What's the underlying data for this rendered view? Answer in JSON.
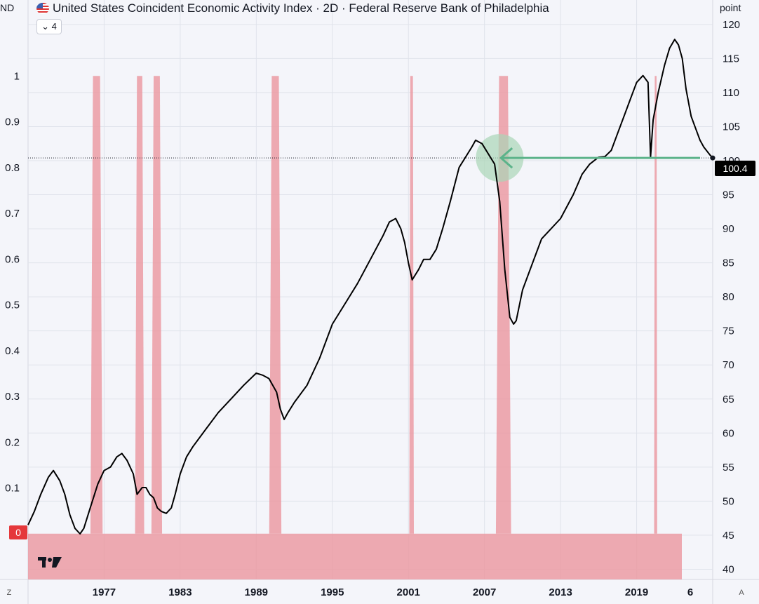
{
  "header": {
    "title": "United States Coincident Economic Activity Index · 2D · Federal Reserve Bank of Philadelphia",
    "collapse_count": "4",
    "left_scale_label": "ND",
    "right_scale_label": "point"
  },
  "badges": {
    "zero_label": "0",
    "last_price": "100.4"
  },
  "corners": {
    "left": "Z",
    "right": "A"
  },
  "colors": {
    "background": "#f4f5fa",
    "recession": "#eb9ba3",
    "line": "#000000",
    "arrow": "#5cb38a",
    "circle": "#a9d6b6",
    "zero_badge": "#e5383b"
  },
  "chart_data": {
    "type": "line",
    "title": "United States Coincident Economic Activity Index · 2D · Federal Reserve Bank of Philadelphia",
    "xlabel": "",
    "ylabel": "point",
    "xlim": [
      1971,
      2025
    ],
    "ylim": [
      38.5,
      120.5
    ],
    "left_ylim": [
      -0.1,
      1.12
    ],
    "x_ticks": [
      "1977",
      "1983",
      "1989",
      "1995",
      "2001",
      "2007",
      "2013",
      "2019",
      "6"
    ],
    "x_tick_values": [
      1977,
      1983,
      1989,
      1995,
      2001,
      2007,
      2013,
      2019,
      2026
    ],
    "right_ticks": [
      "120",
      "115",
      "110",
      "105",
      "100",
      "95",
      "90",
      "85",
      "80",
      "75",
      "70",
      "65",
      "60",
      "55",
      "50",
      "45",
      "40"
    ],
    "right_tick_values": [
      120,
      115,
      110,
      105,
      100,
      95,
      90,
      85,
      80,
      75,
      70,
      65,
      60,
      55,
      50,
      45,
      40
    ],
    "left_ticks": [
      "1",
      "0.9",
      "0.8",
      "0.7",
      "0.6",
      "0.5",
      "0.4",
      "0.3",
      "0.2",
      "0.1"
    ],
    "left_tick_values": [
      1,
      0.9,
      0.8,
      0.7,
      0.6,
      0.5,
      0.4,
      0.3,
      0.2,
      0.1
    ],
    "series": [
      {
        "name": "Coincident Economic Activity Index",
        "x": [
          1971.0,
          1971.5,
          1972.0,
          1972.6,
          1973.0,
          1973.5,
          1973.9,
          1974.3,
          1974.7,
          1975.1,
          1975.4,
          1975.9,
          1976.5,
          1977.0,
          1977.5,
          1978.0,
          1978.4,
          1978.8,
          1979.3,
          1979.6,
          1980.0,
          1980.3,
          1980.6,
          1980.9,
          1981.2,
          1981.5,
          1981.9,
          1982.3,
          1982.6,
          1983.0,
          1983.5,
          1984.0,
          1985.0,
          1986.0,
          1987.0,
          1988.0,
          1989.0,
          1989.5,
          1990.0,
          1990.6,
          1990.9,
          1991.2,
          1991.5,
          1992.0,
          1993.0,
          1994.0,
          1995.0,
          1996.0,
          1997.0,
          1998.0,
          1999.0,
          1999.5,
          2000.0,
          2000.4,
          2000.7,
          2001.0,
          2001.3,
          2001.8,
          2002.2,
          2002.7,
          2003.2,
          2003.7,
          2004.3,
          2005.0,
          2005.5,
          2006.0,
          2006.3,
          2006.8,
          2007.3,
          2007.8,
          2008.2,
          2008.6,
          2009.0,
          2009.3,
          2009.5,
          2010.0,
          2010.8,
          2011.5,
          2012.0,
          2013.0,
          2014.0,
          2014.7,
          2015.3,
          2016.0,
          2016.5,
          2017.0,
          2017.5,
          2018.0,
          2018.5,
          2019.0,
          2019.5,
          2019.9,
          2020.1,
          2020.3,
          2020.7,
          2021.2,
          2021.6,
          2022.0,
          2022.3,
          2022.6,
          2022.9,
          2023.3,
          2023.7,
          2024.0,
          2024.3,
          2024.8,
          2025.0
        ],
        "y": [
          46.5,
          48.5,
          51.0,
          53.5,
          54.5,
          53.0,
          51.0,
          48.0,
          46.0,
          45.2,
          46.0,
          49.0,
          52.5,
          54.5,
          55.0,
          56.5,
          57.0,
          56.0,
          54.0,
          51.0,
          52.0,
          52.0,
          51.0,
          50.5,
          49.0,
          48.5,
          48.2,
          49.0,
          51.0,
          54.0,
          56.5,
          58.0,
          60.5,
          63.0,
          65.0,
          67.0,
          68.8,
          68.5,
          68.0,
          66.0,
          63.5,
          62.0,
          63.0,
          64.5,
          67.0,
          71.0,
          76.0,
          79.0,
          82.0,
          85.5,
          89.0,
          91.0,
          91.5,
          90.0,
          88.0,
          85.0,
          82.5,
          84.0,
          85.5,
          85.5,
          87.0,
          90.0,
          94.0,
          99.0,
          100.5,
          102.0,
          103.0,
          102.5,
          101.0,
          99.5,
          94.0,
          84.0,
          77.0,
          76.0,
          76.5,
          81.0,
          85.0,
          88.5,
          89.5,
          91.5,
          95.0,
          98.0,
          99.5,
          100.5,
          100.6,
          101.5,
          104.0,
          106.5,
          109.0,
          111.5,
          112.5,
          111.5,
          100.5,
          106.0,
          110.0,
          114.0,
          116.5,
          117.8,
          117.0,
          115.0,
          110.5,
          106.5,
          104.5,
          103.0,
          102.0,
          100.8,
          100.4
        ]
      }
    ],
    "recession_bands": [
      {
        "start": 1976.0,
        "end": 1976.8
      },
      {
        "start": 1979.5,
        "end": 1980.1
      },
      {
        "start": 1980.8,
        "end": 1981.5
      },
      {
        "start": 1990.1,
        "end": 1990.9
      },
      {
        "start": 2001.1,
        "end": 2001.4
      },
      {
        "start": 2008.0,
        "end": 2009.0
      },
      {
        "start": 2020.4,
        "end": 2020.6
      }
    ],
    "recession_floor_value": 0,
    "annotations": {
      "horizontal_line_value": 100.4,
      "arrow_from_x": 2024.0,
      "arrow_to_x": 2008.3,
      "circle_center_x": 2008.2,
      "last_value": 100.4
    }
  }
}
